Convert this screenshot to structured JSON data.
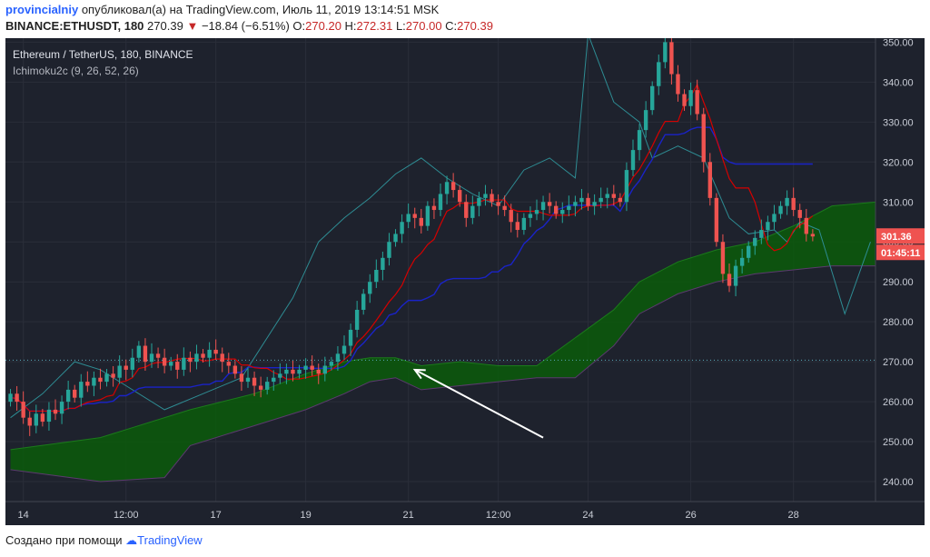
{
  "header": {
    "author": "provincialniy",
    "published": "опубликовал(а) на TradingView.com, Июль 11, 2019 13:14:51 MSK",
    "symbol": "BINANCE:ETHUSDT, 180",
    "last": "270.39",
    "change": "−18.84 (−6.51%)",
    "o_label": "O:",
    "o": "270.20",
    "h_label": "H:",
    "h": "272.31",
    "l_label": "L:",
    "l": "270.00",
    "c_label": "C:",
    "c": "270.39"
  },
  "legend": {
    "title": "Ethereum / TetherUS, 180, BINANCE",
    "indicator": "Ichimoku2c (9, 26, 52, 26)"
  },
  "footer": {
    "text": "Создано при помощи",
    "brand": "TradingView"
  },
  "colors": {
    "background": "#1e222d",
    "grid": "#2a2e39",
    "bull": "#26a69a",
    "bear": "#ef5350",
    "tenkan": "#d50000",
    "kijun": "#1a23c8",
    "chikou": "#2e8c93",
    "cloud_fill": "#0a5a0a",
    "price_line": "#5aa9ba",
    "arrow": "#ffffff",
    "axis_text": "#c9cdd6"
  },
  "chart_data": {
    "type": "candlestick",
    "title": "Ethereum / TetherUS, 180, BINANCE",
    "ylim": [
      235,
      351
    ],
    "y_ticks": [
      "240.00",
      "250.00",
      "260.00",
      "270.00",
      "280.00",
      "290.00",
      "300.00",
      "310.00",
      "320.00",
      "330.00",
      "340.00",
      "350.00"
    ],
    "x_ticks": [
      "14",
      "12:00",
      "17",
      "19",
      "21",
      "12:00",
      "24",
      "26",
      "28"
    ],
    "x_tick_bars": [
      2,
      18,
      32,
      46,
      62,
      76,
      90,
      106,
      122
    ],
    "bars_visible": 135,
    "current_price_label": "301.36",
    "countdown_label": "01:45:11",
    "current_price": 301.36,
    "reference_line": 270.39,
    "closes": [
      262,
      260,
      256,
      254,
      257,
      255,
      258,
      257,
      260,
      263,
      261,
      265,
      264,
      266,
      265,
      267,
      266,
      269,
      268,
      271,
      274,
      270,
      272,
      271,
      269,
      270,
      268,
      271,
      270,
      272,
      271,
      273,
      272,
      270,
      269,
      267,
      265,
      266,
      264,
      263,
      265,
      266,
      267,
      268,
      267,
      268,
      269,
      268,
      267,
      269,
      270,
      272,
      274,
      278,
      283,
      287,
      290,
      293,
      296,
      300,
      302,
      305,
      307,
      306,
      304,
      309,
      308,
      312,
      315,
      313,
      310,
      306,
      309,
      311,
      312,
      310,
      309,
      308,
      305,
      303,
      306,
      307,
      308,
      310,
      309,
      307,
      308,
      309,
      310,
      311,
      309,
      310,
      311,
      312,
      311,
      310,
      318,
      323,
      328,
      333,
      339,
      345,
      350,
      342,
      337,
      334,
      338,
      332,
      320,
      311,
      300,
      292,
      289,
      294,
      296,
      299,
      301,
      303,
      305,
      307,
      309,
      311,
      308,
      306,
      302,
      301.36
    ],
    "chikou_points": [
      [
        0,
        256
      ],
      [
        5,
        262
      ],
      [
        10,
        270
      ],
      [
        14,
        268
      ],
      [
        18,
        264
      ],
      [
        24,
        258
      ],
      [
        30,
        262
      ],
      [
        36,
        266
      ],
      [
        44,
        286
      ],
      [
        48,
        300
      ],
      [
        52,
        306
      ],
      [
        56,
        311
      ],
      [
        60,
        317
      ],
      [
        64,
        321
      ],
      [
        68,
        316
      ],
      [
        72,
        312
      ],
      [
        76,
        309
      ],
      [
        80,
        318
      ],
      [
        84,
        321
      ],
      [
        88,
        316
      ],
      [
        90,
        352
      ],
      [
        94,
        335
      ],
      [
        98,
        330
      ],
      [
        100,
        321
      ],
      [
        104,
        324
      ],
      [
        108,
        321
      ],
      [
        112,
        306
      ],
      [
        115,
        302
      ],
      [
        119,
        303
      ],
      [
        121,
        300
      ],
      [
        123,
        305
      ],
      [
        126,
        303
      ],
      [
        130,
        282
      ],
      [
        134,
        300
      ]
    ],
    "cloud_upper": [
      [
        0,
        248
      ],
      [
        14,
        251
      ],
      [
        28,
        258
      ],
      [
        38,
        262
      ],
      [
        46,
        267
      ],
      [
        52,
        270
      ],
      [
        56,
        271
      ],
      [
        60,
        271
      ],
      [
        64,
        269
      ],
      [
        70,
        270
      ],
      [
        76,
        269
      ],
      [
        82,
        269
      ],
      [
        88,
        276
      ],
      [
        94,
        283
      ],
      [
        98,
        290
      ],
      [
        104,
        295
      ],
      [
        110,
        298
      ],
      [
        116,
        300
      ],
      [
        122,
        304
      ],
      [
        128,
        309
      ],
      [
        135,
        310
      ]
    ],
    "cloud_lower": [
      [
        0,
        243
      ],
      [
        14,
        240
      ],
      [
        24,
        241
      ],
      [
        28,
        249
      ],
      [
        38,
        254
      ],
      [
        46,
        258
      ],
      [
        52,
        262
      ],
      [
        56,
        265
      ],
      [
        60,
        266
      ],
      [
        64,
        263
      ],
      [
        70,
        264
      ],
      [
        76,
        265
      ],
      [
        82,
        266
      ],
      [
        88,
        266
      ],
      [
        94,
        274
      ],
      [
        98,
        282
      ],
      [
        104,
        287
      ],
      [
        110,
        290
      ],
      [
        116,
        292
      ],
      [
        122,
        293
      ],
      [
        128,
        294
      ],
      [
        135,
        294
      ]
    ],
    "annotation_arrow": {
      "from": [
        83,
        251
      ],
      "to": [
        63,
        268
      ]
    }
  }
}
